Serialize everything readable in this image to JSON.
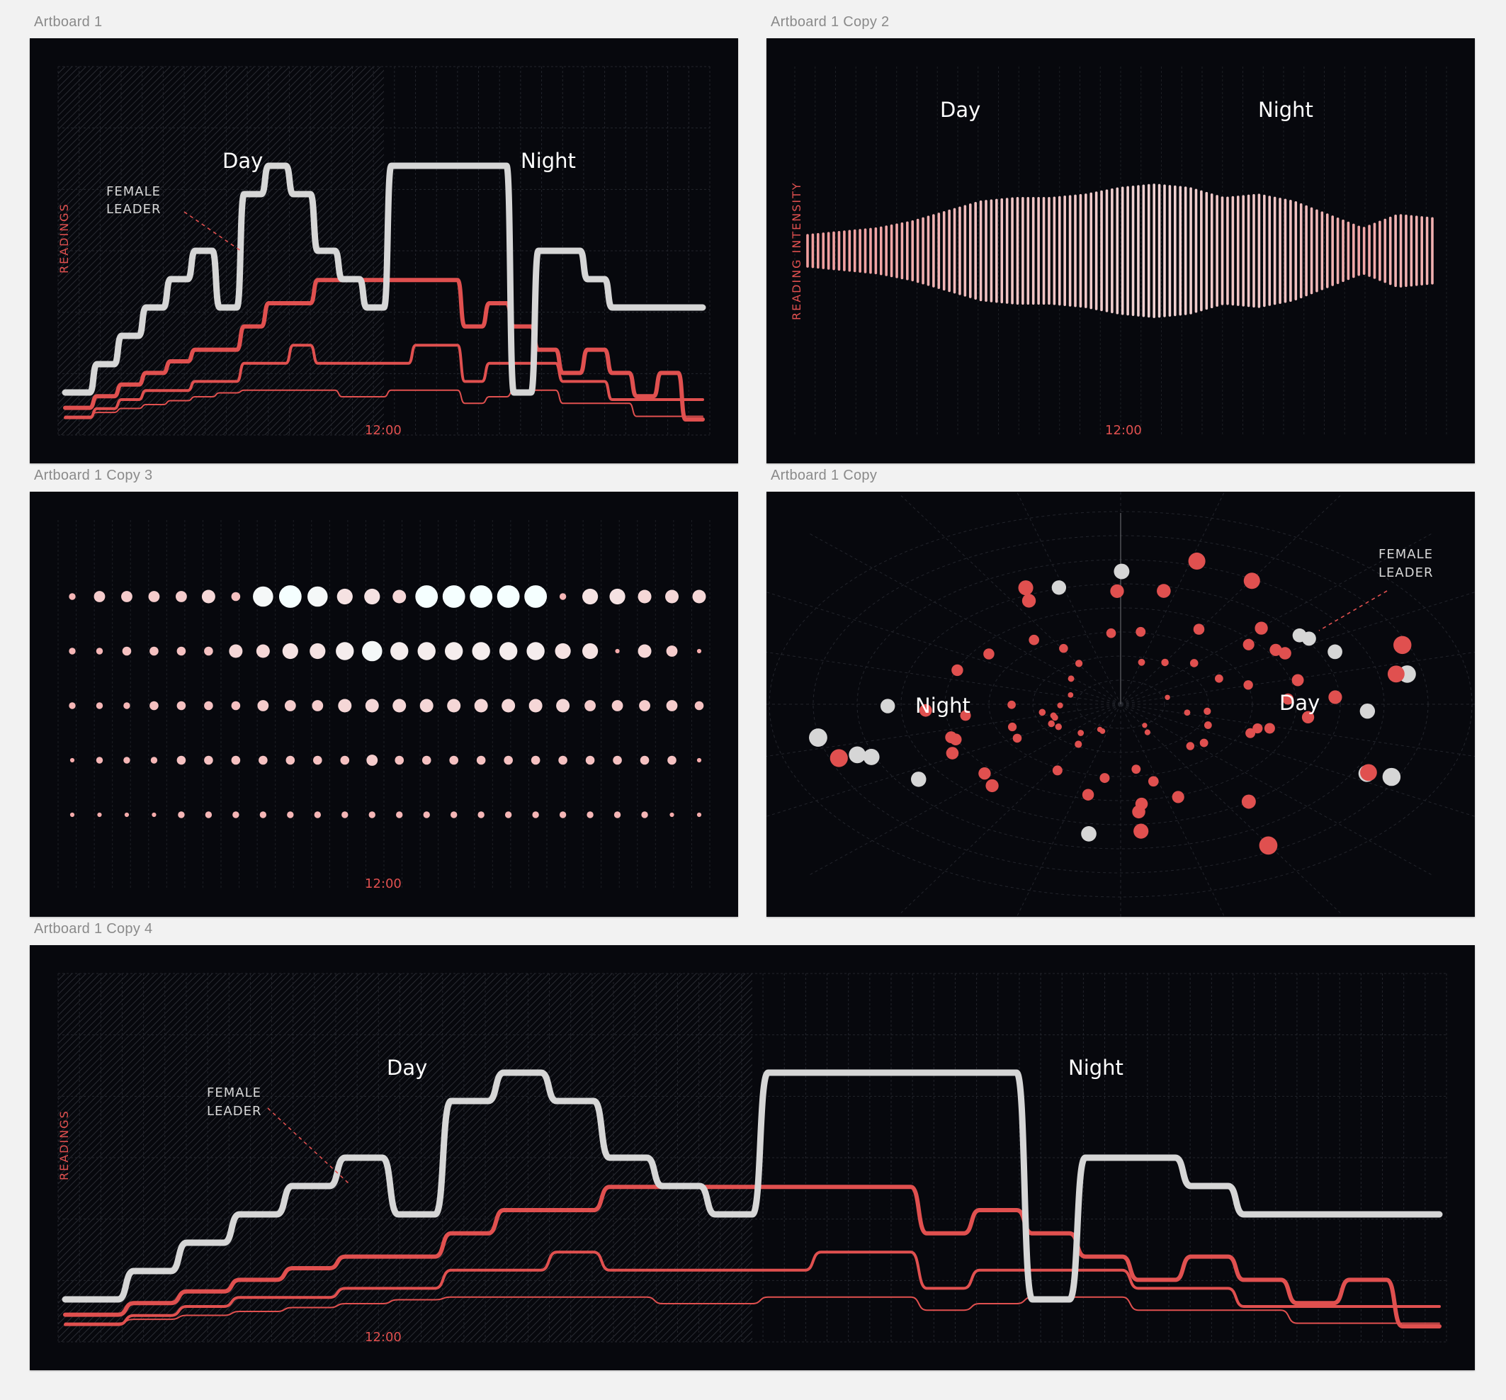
{
  "colors": {
    "background": "#07080d",
    "canvas": "#f2f2f2",
    "accent_red": "#e0504f",
    "leader_white": "#d6d6d6",
    "label_gray": "#8a8a8a"
  },
  "artboards": [
    {
      "name": "Artboard 1",
      "chart_data": {
        "type": "line",
        "ylabel": "READINGS",
        "period_labels": [
          "Day",
          "Night"
        ],
        "annotation": [
          "FEMALE",
          "LEADER"
        ],
        "x_tick_label": "12:00",
        "x": [
          0,
          1,
          2,
          3,
          4,
          5,
          6,
          7,
          8,
          9,
          10,
          11,
          12,
          13,
          14,
          15,
          16,
          17,
          18,
          19,
          20,
          21,
          22,
          23,
          24,
          25
        ],
        "series": [
          {
            "role": "leader",
            "values": [
              1,
              2,
              3,
              4,
              5,
              6,
              4,
              8,
              9,
              8,
              6,
              5,
              4,
              9,
              9,
              9,
              9,
              9,
              1,
              6,
              6,
              5,
              4,
              4,
              4,
              4
            ]
          },
          {
            "role": "member",
            "values": [
              0.5,
              1,
              1.5,
              2,
              2.5,
              3,
              3,
              4,
              5,
              5,
              6,
              6,
              6,
              6,
              6,
              6,
              4,
              5,
              4,
              3,
              2,
              3,
              2,
              1,
              2,
              0
            ]
          },
          {
            "role": "member",
            "values": [
              0,
              0.5,
              1,
              1.5,
              1.5,
              2,
              2,
              3,
              3,
              4,
              3,
              3,
              3,
              3,
              4,
              4,
              2,
              3,
              3,
              3,
              2,
              2,
              1,
              1,
              1,
              1
            ]
          },
          {
            "role": "member",
            "values": [
              0,
              0.3,
              0.6,
              0.9,
              1.2,
              1.5,
              1.8,
              2,
              2,
              2,
              2,
              1.5,
              1.5,
              2,
              2,
              2,
              1,
              1.5,
              2,
              2,
              1,
              1,
              1,
              0,
              0,
              0
            ]
          }
        ]
      }
    },
    {
      "name": "Artboard 1 Copy 2",
      "chart_data": {
        "type": "bar",
        "ylabel": "READING INTENSITY",
        "period_labels": [
          "Day",
          "Night"
        ],
        "x_tick_label": "12:00",
        "bar_count": 120,
        "envelope_keypoints": [
          0.25,
          0.3,
          0.35,
          0.45,
          0.6,
          0.75,
          0.8,
          0.8,
          0.85,
          0.95,
          1.0,
          0.95,
          0.8,
          0.85,
          0.75,
          0.55,
          0.35,
          0.55,
          0.5
        ]
      }
    },
    {
      "name": "Artboard 1 Copy 3",
      "chart_data": {
        "type": "scatter",
        "x_tick_label": "12:00",
        "columns": 24,
        "rows": [
          [
            2,
            4,
            4,
            4,
            4,
            5,
            3,
            8,
            9,
            8,
            6,
            6,
            5,
            9,
            9,
            9,
            9,
            9,
            2,
            6,
            6,
            5,
            5,
            5
          ],
          [
            2,
            2,
            3,
            3,
            3,
            3,
            5,
            5,
            6,
            6,
            7,
            8,
            7,
            7,
            7,
            7,
            7,
            7,
            6,
            6,
            1,
            5,
            4,
            1
          ],
          [
            2,
            2,
            2,
            3,
            3,
            3,
            3,
            4,
            4,
            4,
            5,
            5,
            5,
            5,
            5,
            5,
            5,
            5,
            5,
            4,
            4,
            4,
            4,
            3
          ],
          [
            1,
            2,
            2,
            2,
            3,
            3,
            3,
            3,
            3,
            3,
            3,
            4,
            3,
            3,
            3,
            3,
            3,
            3,
            3,
            3,
            3,
            3,
            3,
            1
          ],
          [
            1,
            1,
            1,
            1,
            2,
            2,
            2,
            2,
            2,
            2,
            2,
            2,
            2,
            2,
            2,
            2,
            2,
            2,
            2,
            2,
            2,
            2,
            1,
            1
          ]
        ]
      }
    },
    {
      "name": "Artboard 1 Copy",
      "chart_data": {
        "type": "scatter",
        "projection": "polar",
        "period_labels": [
          "Night",
          "Day"
        ],
        "annotation": [
          "FEMALE",
          "LEADER"
        ]
      }
    },
    {
      "name": "Artboard 1 Copy 4",
      "chart_data": {
        "type": "line",
        "ylabel": "READINGS",
        "period_labels": [
          "Day",
          "Night"
        ],
        "annotation": [
          "FEMALE",
          "LEADER"
        ],
        "x_tick_label": "12:00",
        "x": [
          0,
          1,
          2,
          3,
          4,
          5,
          6,
          7,
          8,
          9,
          10,
          11,
          12,
          13,
          14,
          15,
          16,
          17,
          18,
          19,
          20,
          21,
          22,
          23,
          24,
          25
        ],
        "series": [
          {
            "role": "leader",
            "values": [
              1,
              2,
              3,
              4,
              5,
              6,
              4,
              8,
              9,
              8,
              6,
              5,
              4,
              9,
              9,
              9,
              9,
              9,
              1,
              6,
              6,
              5,
              4,
              4,
              4,
              4
            ]
          },
          {
            "role": "member",
            "values": [
              0.5,
              1,
              1.5,
              2,
              2.5,
              3,
              3,
              4,
              5,
              5,
              6,
              6,
              6,
              6,
              6,
              6,
              4,
              5,
              4,
              3,
              2,
              3,
              2,
              1,
              2,
              0
            ]
          },
          {
            "role": "member",
            "values": [
              0,
              0.5,
              1,
              1.5,
              1.5,
              2,
              2,
              3,
              3,
              4,
              3,
              3,
              3,
              3,
              4,
              4,
              2,
              3,
              3,
              3,
              2,
              2,
              1,
              1,
              1,
              1
            ]
          },
          {
            "role": "member",
            "values": [
              0,
              0.3,
              0.6,
              0.9,
              1.2,
              1.5,
              1.8,
              2,
              2,
              2,
              2,
              1.5,
              1.5,
              2,
              2,
              2,
              1,
              1.5,
              2,
              2,
              1,
              1,
              1,
              0,
              0,
              0
            ]
          }
        ]
      }
    }
  ]
}
